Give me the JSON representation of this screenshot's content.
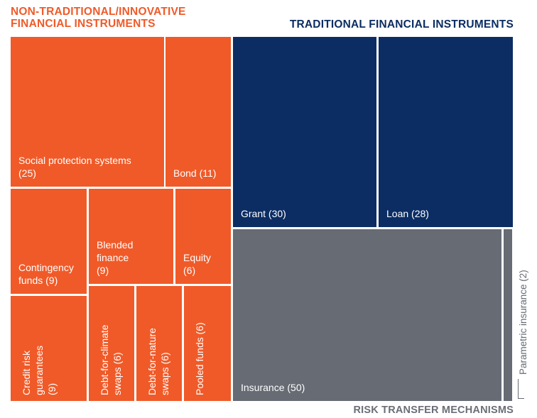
{
  "group_titles": {
    "non_traditional_line1": "NON-TRADITIONAL/INNOVATIVE",
    "non_traditional_line2": "FINANCIAL INSTRUMENTS",
    "traditional": "TRADITIONAL FINANCIAL INSTRUMENTS",
    "risk_transfer": "RISK TRANSFER MECHANISMS"
  },
  "colors": {
    "non_traditional": "#f05a28",
    "traditional": "#0b2d63",
    "risk_transfer": "#666b74"
  },
  "chart_data": {
    "type": "treemap",
    "title": "",
    "groups": [
      {
        "name": "NON-TRADITIONAL/INNOVATIVE FINANCIAL INSTRUMENTS",
        "items": [
          {
            "label": "Social protection systems\n(25)",
            "name": "Social protection systems",
            "value": 25
          },
          {
            "label": "Bond (11)",
            "name": "Bond",
            "value": 11
          },
          {
            "label": "Contingency\nfunds (9)",
            "name": "Contingency funds",
            "value": 9
          },
          {
            "label": "Blended\nfinance\n(9)",
            "name": "Blended finance",
            "value": 9
          },
          {
            "label": "Equity\n(6)",
            "name": "Equity",
            "value": 6
          },
          {
            "label": "Credit risk\nguarantees\n(9)",
            "name": "Credit risk guarantees",
            "value": 9
          },
          {
            "label": "Debt-for-climate\nswaps (6)",
            "name": "Debt-for-climate swaps",
            "value": 6
          },
          {
            "label": "Debt-for-nature\nswaps (6)",
            "name": "Debt-for-nature swaps",
            "value": 6
          },
          {
            "label": "Pooled funds (6)",
            "name": "Pooled funds",
            "value": 6
          }
        ]
      },
      {
        "name": "TRADITIONAL FINANCIAL INSTRUMENTS",
        "items": [
          {
            "label": "Grant (30)",
            "name": "Grant",
            "value": 30
          },
          {
            "label": "Loan (28)",
            "name": "Loan",
            "value": 28
          }
        ]
      },
      {
        "name": "RISK TRANSFER MECHANISMS",
        "items": [
          {
            "label": "Insurance (50)",
            "name": "Insurance",
            "value": 50
          },
          {
            "label": "Parametric insurance (2)",
            "name": "Parametric insurance",
            "value": 2
          }
        ]
      }
    ]
  }
}
